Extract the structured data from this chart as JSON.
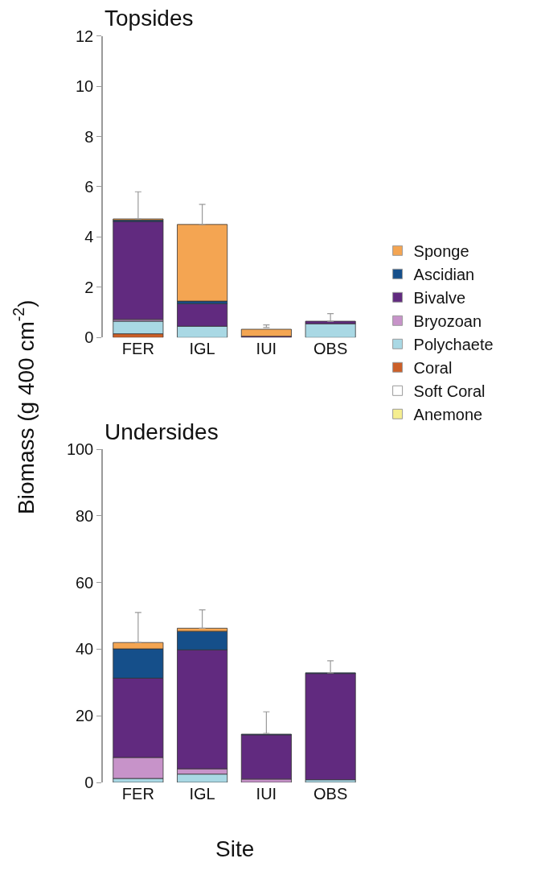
{
  "chart_data": [
    {
      "type": "bar",
      "title": "Topsides",
      "ylabel": "Biomass (g 400 cm$^{-2}$)",
      "stacked": true,
      "legend": "right",
      "categories": [
        "FER",
        "IGL",
        "IUI",
        "OBS"
      ],
      "ylim": [
        0,
        12
      ],
      "yticks": [
        0,
        2,
        4,
        6,
        8,
        10,
        12
      ],
      "series": [
        {
          "name": "Anemone",
          "color": "#f5ee90",
          "values": [
            0,
            0,
            0,
            0
          ]
        },
        {
          "name": "Soft Coral",
          "color": "#ffffff",
          "values": [
            0,
            0,
            0,
            0
          ]
        },
        {
          "name": "Coral",
          "color": "#cc5f28",
          "values": [
            0.15,
            0,
            0,
            0
          ]
        },
        {
          "name": "Polychaete",
          "color": "#a9d8e4",
          "values": [
            0.5,
            0.45,
            0,
            0.55
          ]
        },
        {
          "name": "Bryozoan",
          "color": "#c793c9",
          "values": [
            0.07,
            0,
            null,
            0
          ]
        },
        {
          "name": "Bivalve",
          "color": "#612a7f",
          "values": [
            3.9,
            0.9,
            0.05,
            0.1
          ]
        },
        {
          "name": "Ascidian",
          "color": "#154f8a",
          "values": [
            0.05,
            0.1,
            0,
            0
          ]
        },
        {
          "name": "Sponge",
          "color": "#f4a552",
          "values": [
            0.05,
            3.05,
            0.28,
            0
          ],
          "errors": [
            [
              4.72,
              5.8
            ],
            [
              4.5,
              5.3
            ],
            [
              0.4,
              0.5
            ],
            [
              0.65,
              0.95
            ]
          ]
        }
      ]
    },
    {
      "type": "bar",
      "title": "Undersides",
      "xlabel": "Site",
      "stacked": true,
      "categories": [
        "FER",
        "IGL",
        "IUI",
        "OBS"
      ],
      "ylim": [
        0,
        100
      ],
      "yticks": [
        0,
        20,
        40,
        60,
        80,
        100
      ],
      "series": [
        {
          "color": "#f5ee90",
          "values": [
            0,
            0,
            0,
            0
          ]
        },
        {
          "color": "#ffffff",
          "values": [
            0,
            0,
            0,
            0
          ]
        },
        {
          "color": "#cc5f28",
          "values": [
            0,
            0,
            0,
            0
          ]
        },
        {
          "color": "#a9d8e4",
          "values": [
            1.2,
            2.5,
            null,
            0.8
          ]
        },
        {
          "color": "#c793c9",
          "values": [
            6.3,
            1.6,
            1.0,
            0
          ]
        },
        {
          "color": "#612a7f",
          "values": [
            23.8,
            35.7,
            13.3,
            31.9
          ]
        },
        {
          "color": "#154f8a",
          "values": [
            8.8,
            5.6,
            0.2,
            0.2
          ]
        },
        {
          "color": "#f4a552",
          "values": [
            1.9,
            0.9,
            0,
            0
          ],
          "errors": [
            [
              42,
              51
            ],
            [
              46.3,
              51.8
            ],
            [
              14.7,
              21.2
            ],
            [
              32.9,
              36.5
            ]
          ]
        }
      ]
    }
  ]
}
